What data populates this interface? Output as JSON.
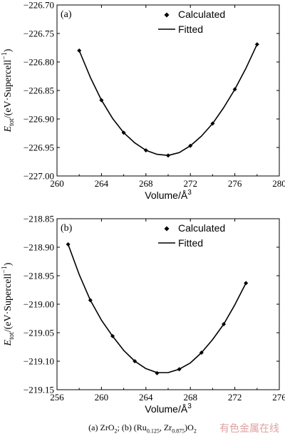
{
  "chart_data": [
    {
      "type": "line",
      "panel_label": "(b)",
      "xlabel": "Volume/Å",
      "xlabel_sup": "3",
      "ylabel": "E",
      "ylabel_sub": "tot",
      "ylabel_unit": "/(eV·Supercell",
      "ylabel_sup": "−1",
      "ylabel_close": ")",
      "xlim": [
        256,
        276
      ],
      "ylim": [
        -219.15,
        -218.85
      ],
      "xticks": [
        256,
        260,
        264,
        268,
        272,
        276
      ],
      "yticks": [
        -218.85,
        -218.9,
        -218.95,
        -219.0,
        -219.05,
        -219.1,
        -219.15
      ],
      "xtick_labels": [
        "256",
        "260",
        "264",
        "268",
        "272",
        "276"
      ],
      "ytick_labels": [
        "−218.85",
        "−218.90",
        "−218.95",
        "−219.00",
        "−219.05",
        "−219.10",
        "−219.15"
      ],
      "legend": {
        "placement": "top-right",
        "calculated": "Calculated",
        "fitted": "Fitted"
      },
      "calculated": {
        "x": [
          257,
          259,
          261,
          263,
          265,
          267,
          269,
          271,
          273
        ],
        "y": [
          -218.895,
          -218.993,
          -219.056,
          -219.1,
          -219.121,
          -219.114,
          -219.085,
          -219.035,
          -218.963
        ]
      },
      "fitted": {
        "x": [
          257,
          258,
          259,
          260,
          261,
          262,
          263,
          264,
          265,
          266,
          267,
          268,
          269,
          270,
          271,
          272,
          273
        ],
        "y": [
          -218.895,
          -218.948,
          -218.993,
          -219.028,
          -219.056,
          -219.081,
          -219.1,
          -219.113,
          -219.12,
          -219.12,
          -219.114,
          -219.103,
          -219.085,
          -219.062,
          -219.035,
          -219.001,
          -218.963
        ]
      }
    }
  ],
  "top_panel": {
    "panel_label": "(a)",
    "xlabel": "Volume/Å",
    "xlabel_sup": "3",
    "ylabel": "E",
    "ylabel_sub": "tot",
    "ylabel_unit": "/(eV·Supercell",
    "ylabel_sup": "−1",
    "ylabel_close": ")",
    "xlim": [
      260,
      280
    ],
    "ylim": [
      -227.0,
      -226.7
    ],
    "xticks": [
      260,
      264,
      268,
      272,
      276,
      280
    ],
    "yticks": [
      -226.7,
      -226.75,
      -226.8,
      -226.85,
      -226.9,
      -226.95,
      -227.0
    ],
    "xtick_labels": [
      "260",
      "264",
      "268",
      "272",
      "276",
      "280"
    ],
    "ytick_labels": [
      "−226.70",
      "−226.75",
      "−226.80",
      "−226.85",
      "−226.90",
      "−226.95",
      "−227.00"
    ],
    "legend": {
      "placement": "top-right",
      "calculated": "Calculated",
      "fitted": "Fitted"
    },
    "calculated": {
      "x": [
        262,
        264,
        266,
        268,
        270,
        272,
        274,
        276,
        278
      ],
      "y": [
        -226.78,
        -226.867,
        -226.924,
        -226.955,
        -226.964,
        -226.947,
        -226.908,
        -226.848,
        -226.769
      ]
    },
    "fitted": {
      "x": [
        262,
        263,
        264,
        265,
        266,
        267,
        268,
        269,
        270,
        271,
        272,
        273,
        274,
        275,
        276,
        277,
        278
      ],
      "y": [
        -226.78,
        -226.827,
        -226.867,
        -226.899,
        -226.924,
        -226.942,
        -226.955,
        -226.962,
        -226.964,
        -226.959,
        -226.947,
        -226.93,
        -226.908,
        -226.88,
        -226.848,
        -226.811,
        -226.769
      ]
    }
  },
  "caption": {
    "a": "(a) ZrO",
    "a_sub": "2",
    "sep": "; (b) (Ru",
    "ru_sub": "0.125",
    "mid": ", Zr",
    "zr_sub": "0.875",
    "close": ")O",
    "o_sub": "2"
  },
  "watermark": "有色金属在线"
}
